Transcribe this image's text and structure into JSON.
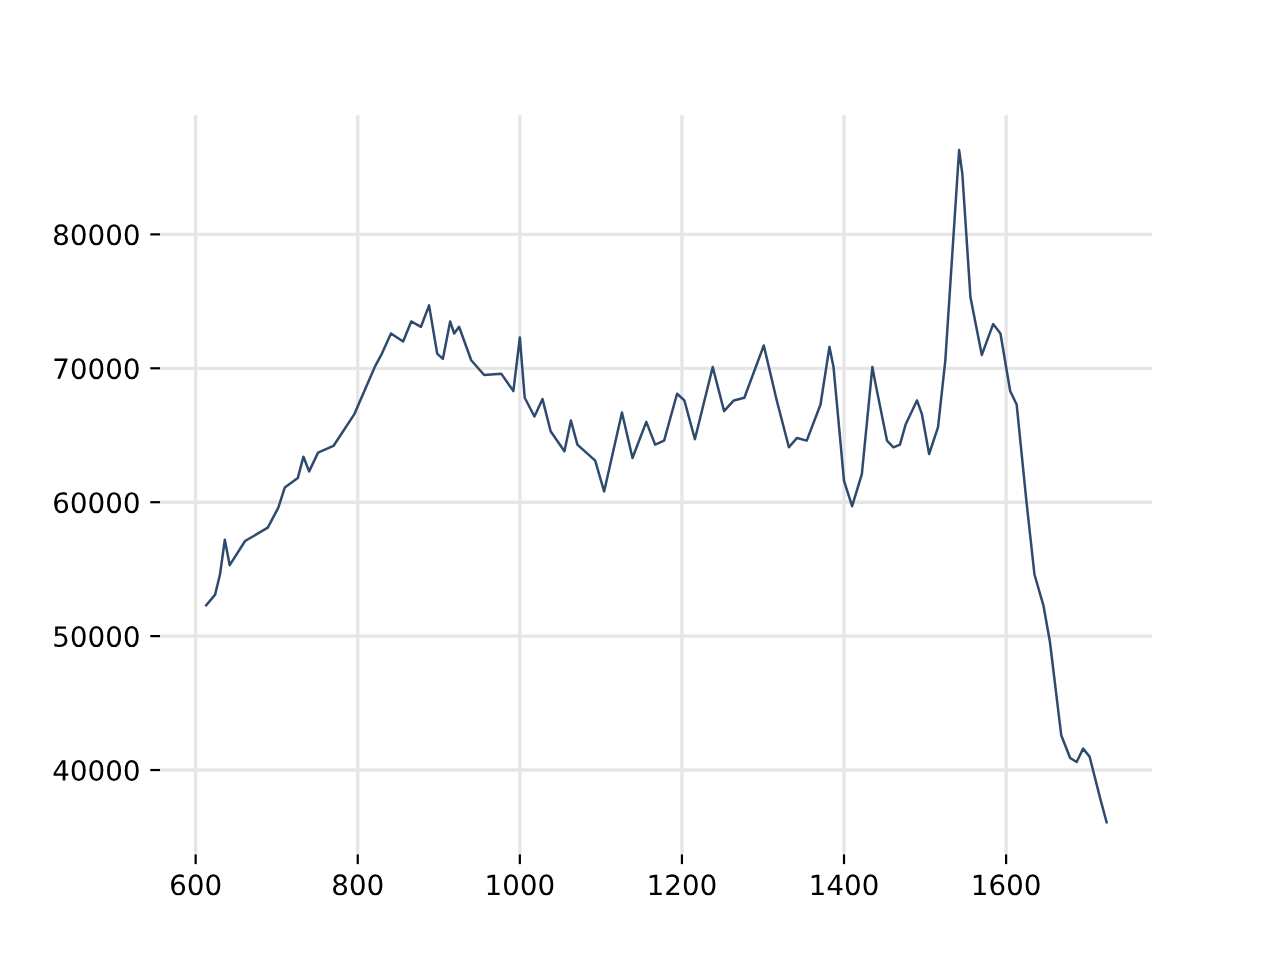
{
  "chart_data": {
    "type": "line",
    "xlim": [
      556,
      1780
    ],
    "ylim": [
      33700,
      88900
    ],
    "xticks": [
      600,
      800,
      1000,
      1200,
      1400,
      1600
    ],
    "yticks": [
      40000,
      50000,
      60000,
      70000,
      80000
    ],
    "grid": true,
    "series": [
      {
        "color": "#2e4a6e",
        "x": [
          613,
          624,
          630,
          636,
          642,
          661,
          689,
          702,
          710,
          726,
          733,
          740,
          751,
          770,
          796,
          821,
          829,
          841,
          856,
          866,
          878,
          888,
          898,
          905,
          914,
          919,
          925,
          940,
          956,
          977,
          992,
          1000,
          1006,
          1018,
          1028,
          1038,
          1055,
          1063,
          1071,
          1093,
          1104,
          1126,
          1139,
          1156,
          1167,
          1178,
          1194,
          1203,
          1216,
          1238,
          1252,
          1264,
          1277,
          1301,
          1317,
          1332,
          1342,
          1354,
          1371,
          1382,
          1387,
          1400,
          1410,
          1422,
          1435,
          1439,
          1453,
          1461,
          1469,
          1476,
          1490,
          1496,
          1505,
          1516,
          1525,
          1542,
          1546,
          1556,
          1570,
          1584,
          1593,
          1605,
          1613,
          1625,
          1635,
          1646,
          1654,
          1668,
          1679,
          1687,
          1695,
          1703,
          1716,
          1724
        ],
        "values": [
          52300,
          53100,
          54600,
          57200,
          55300,
          57100,
          58100,
          59600,
          61100,
          61800,
          63400,
          62300,
          63700,
          64200,
          66600,
          70100,
          71000,
          72600,
          72000,
          73500,
          73100,
          74700,
          71100,
          70700,
          73500,
          72600,
          73100,
          70600,
          69500,
          69600,
          68300,
          72300,
          67800,
          66400,
          67700,
          65300,
          63800,
          66100,
          64300,
          63100,
          60800,
          66700,
          63300,
          66000,
          64300,
          64600,
          68100,
          67600,
          64700,
          70100,
          66800,
          67600,
          67800,
          71700,
          67600,
          64100,
          64800,
          64600,
          67300,
          71600,
          70100,
          61600,
          59700,
          62100,
          70100,
          68800,
          64600,
          64100,
          64300,
          65800,
          67600,
          66600,
          63600,
          65600,
          70600,
          86300,
          84500,
          75300,
          71000,
          73300,
          72600,
          68300,
          67300,
          60100,
          54600,
          52300,
          49600,
          42600,
          40900,
          40600,
          41600,
          41000,
          37900,
          36100
        ]
      }
    ]
  }
}
